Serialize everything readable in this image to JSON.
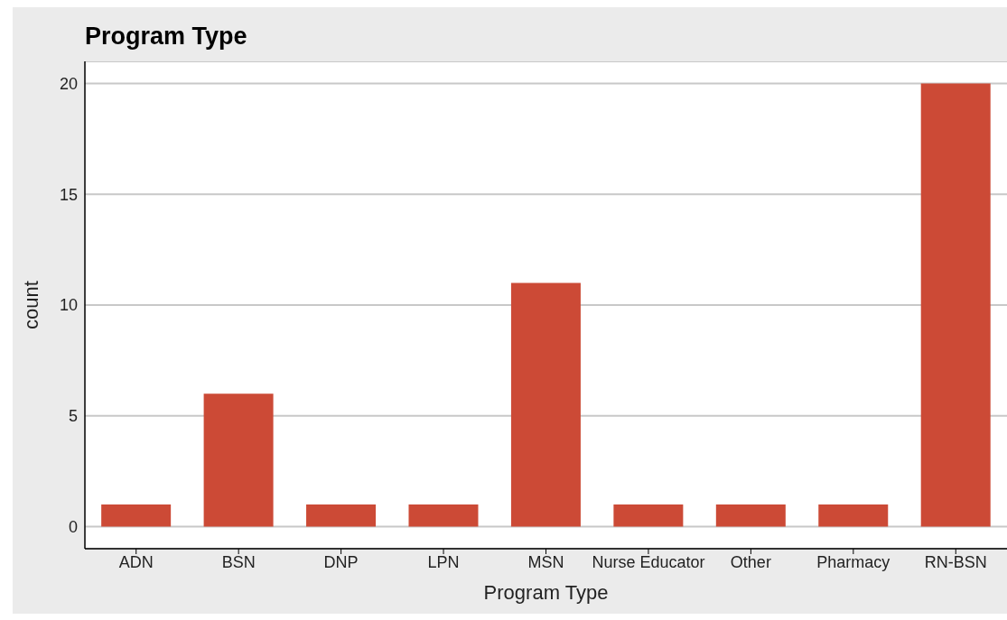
{
  "chart_data": {
    "type": "bar",
    "title": "Program Type",
    "xlabel": "Program Type",
    "ylabel": "count",
    "categories": [
      "ADN",
      "BSN",
      "DNP",
      "LPN",
      "MSN",
      "Nurse Educator",
      "Other",
      "Pharmacy",
      "RN-BSN"
    ],
    "values": [
      1,
      6,
      1,
      1,
      11,
      1,
      1,
      1,
      20
    ],
    "color": "#cc4a36",
    "ylim": [
      -1,
      21
    ],
    "yticks": [
      0,
      5,
      10,
      15,
      20
    ],
    "grid": "y"
  }
}
